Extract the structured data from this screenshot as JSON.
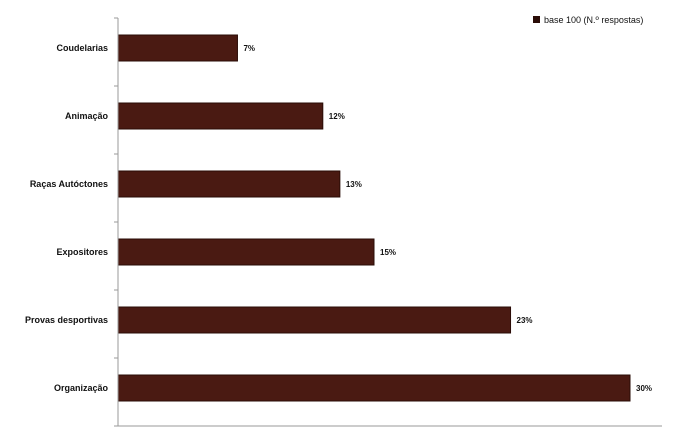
{
  "chart_data": {
    "type": "bar",
    "orientation": "horizontal",
    "categories": [
      "Coudelarias",
      "Animação",
      "Raças Autóctones",
      "Expositores",
      "Provas desportivas",
      "Organização"
    ],
    "series": [
      {
        "name": "base 100 (N.º respostas)",
        "values": [
          7,
          12,
          13,
          15,
          23,
          30
        ]
      }
    ],
    "data_labels": [
      "7%",
      "12%",
      "13%",
      "15%",
      "23%",
      "30%"
    ],
    "xlim": [
      0,
      30
    ],
    "grid": false,
    "legend_position": "top-right",
    "colors": {
      "bar": "#4a1a12",
      "bar_edge": "#2a0c07",
      "axis": "#9a9a9a",
      "text": "#111111"
    }
  }
}
